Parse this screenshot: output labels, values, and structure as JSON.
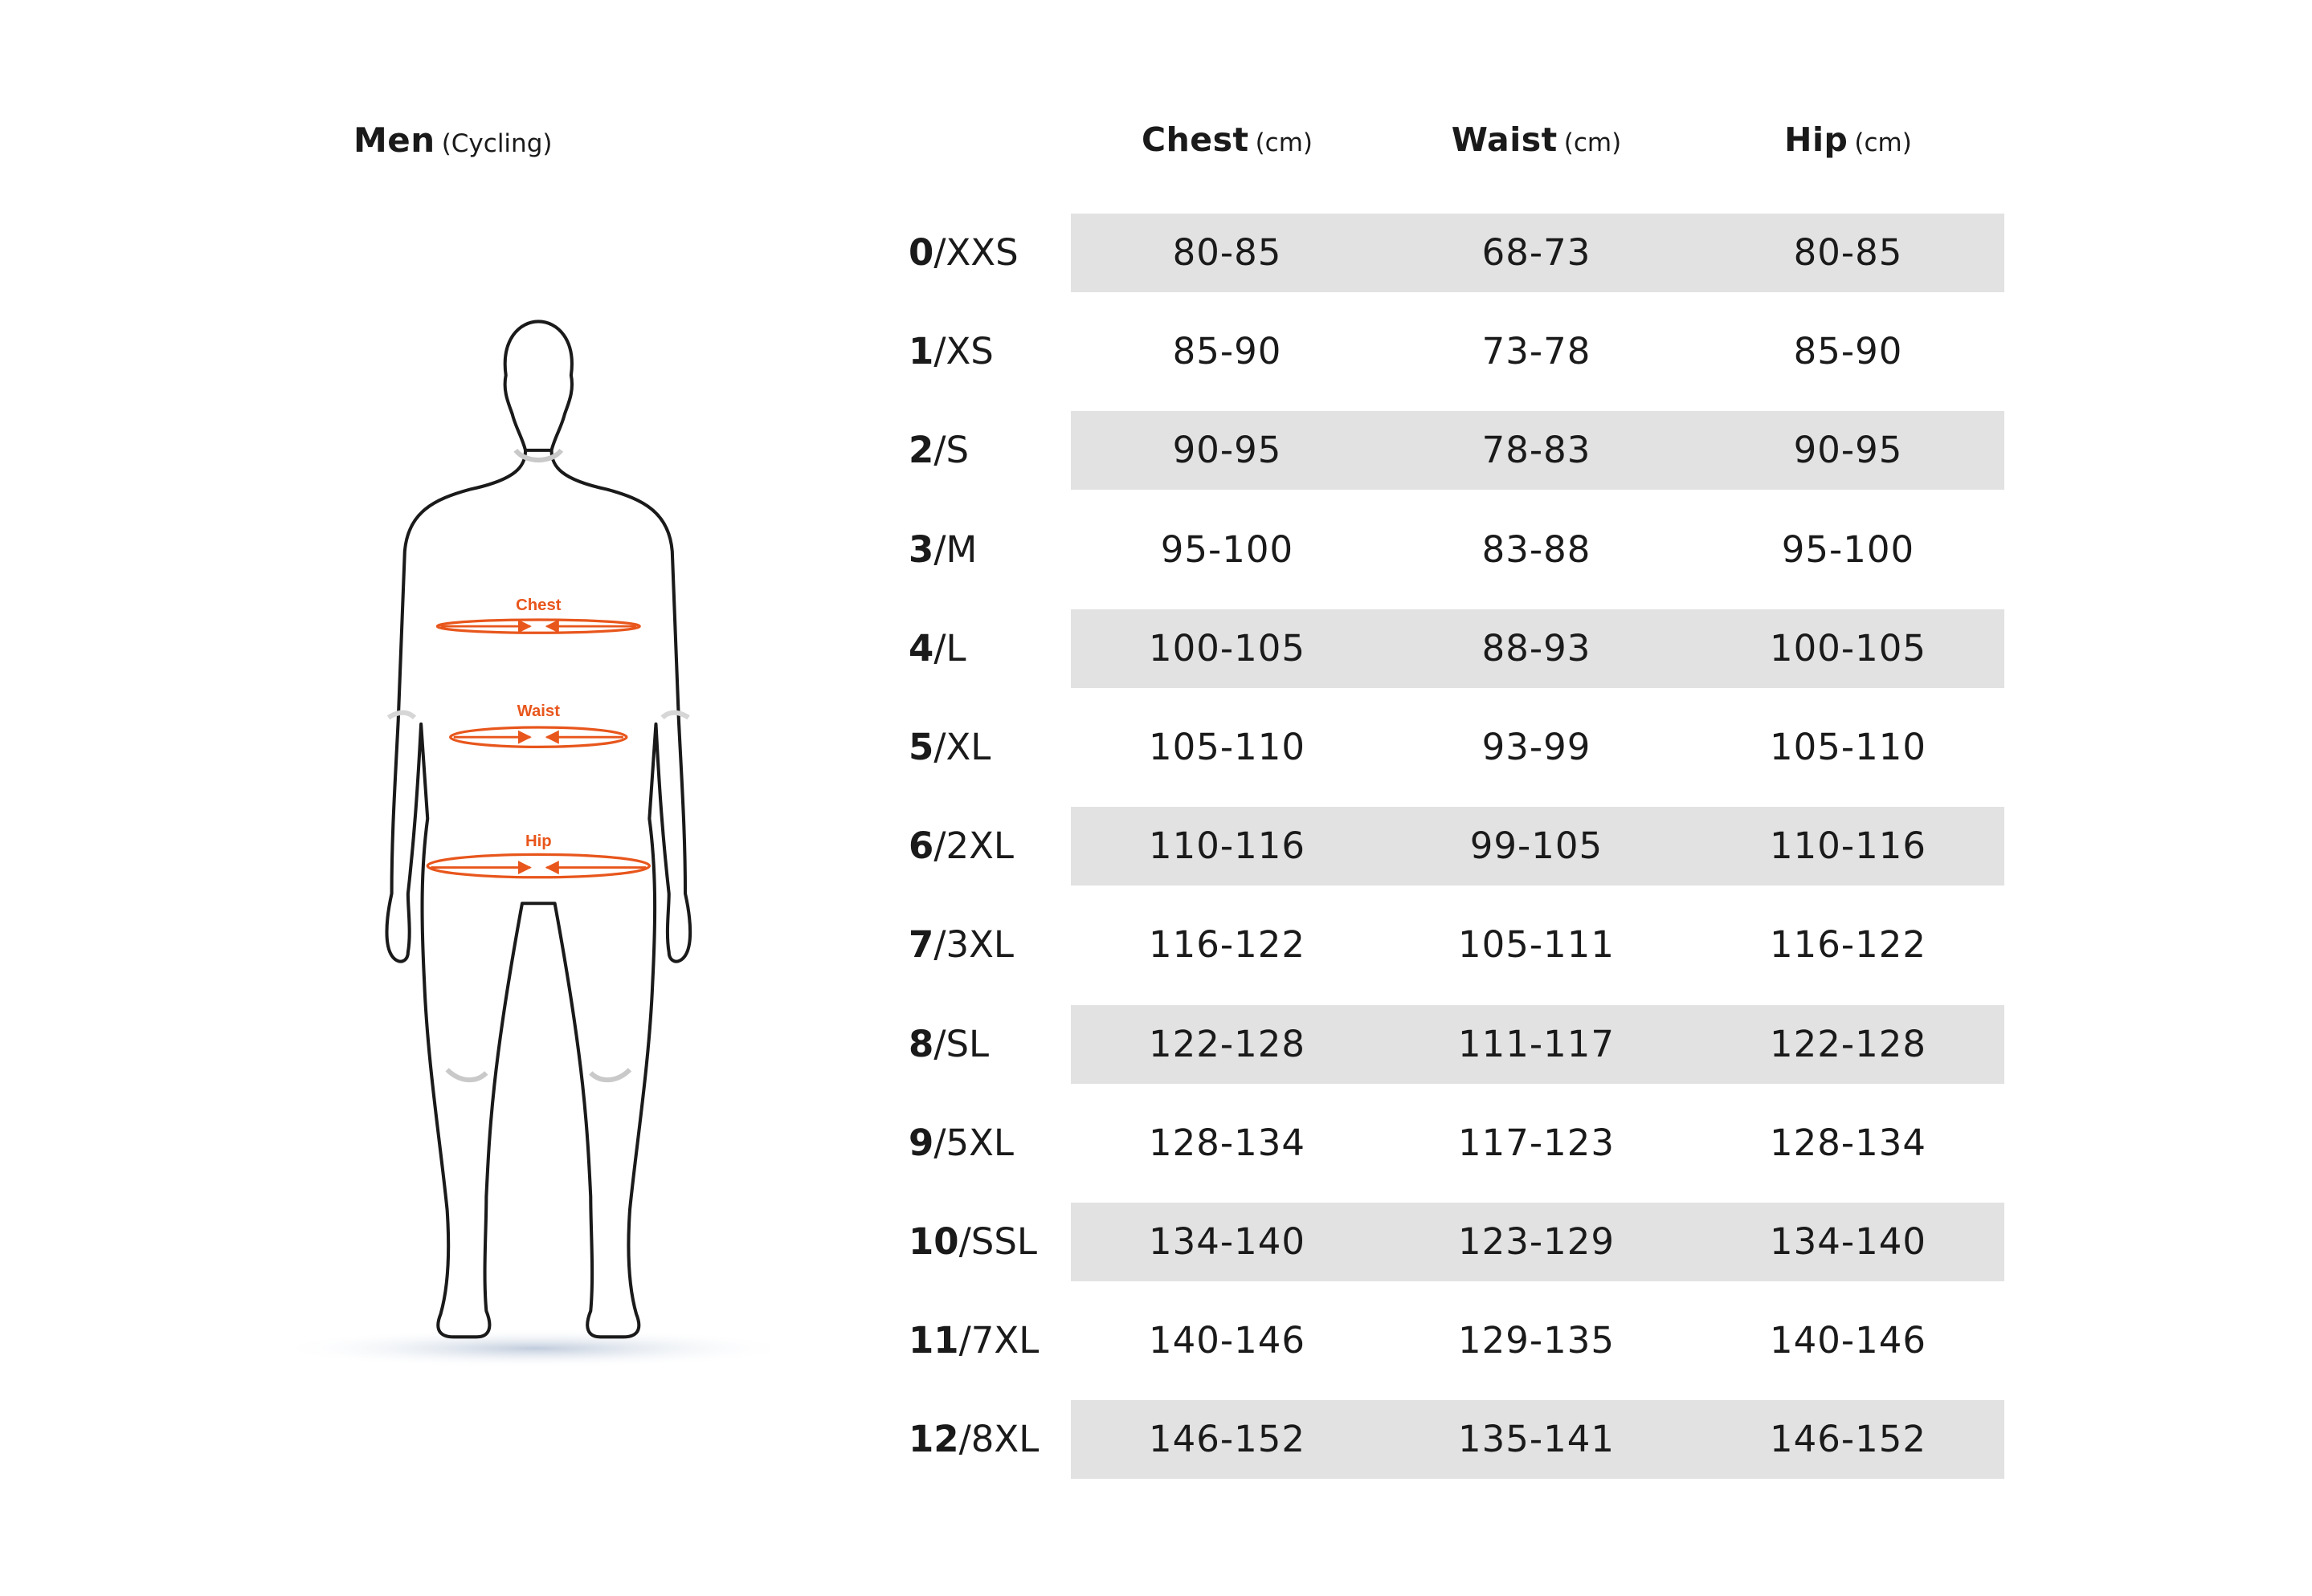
{
  "title": {
    "main": "Men",
    "sub": "(Cycling)"
  },
  "figure": {
    "chest_label": "Chest",
    "waist_label": "Waist",
    "hip_label": "Hip",
    "accent_color": "#e8561c",
    "outline_color": "#1a1a1a"
  },
  "table": {
    "headers": [
      {
        "label": "Chest",
        "unit": "(cm)"
      },
      {
        "label": "Waist",
        "unit": "(cm)"
      },
      {
        "label": "Hip",
        "unit": "(cm)"
      }
    ],
    "band_color": "#e2e2e2",
    "rows": [
      {
        "num": "0",
        "label": "/XXS",
        "chest": "80-85",
        "waist": "68-73",
        "hip": "80-85"
      },
      {
        "num": "1",
        "label": "/XS",
        "chest": "85-90",
        "waist": "73-78",
        "hip": "85-90"
      },
      {
        "num": "2",
        "label": "/S",
        "chest": "90-95",
        "waist": "78-83",
        "hip": "90-95"
      },
      {
        "num": "3",
        "label": "/M",
        "chest": "95-100",
        "waist": "83-88",
        "hip": "95-100"
      },
      {
        "num": "4",
        "label": "/L",
        "chest": "100-105",
        "waist": "88-93",
        "hip": "100-105"
      },
      {
        "num": "5",
        "label": "/XL",
        "chest": "105-110",
        "waist": "93-99",
        "hip": "105-110"
      },
      {
        "num": "6",
        "label": "/2XL",
        "chest": "110-116",
        "waist": "99-105",
        "hip": "110-116"
      },
      {
        "num": "7",
        "label": "/3XL",
        "chest": "116-122",
        "waist": "105-111",
        "hip": "116-122"
      },
      {
        "num": "8",
        "label": "/SL",
        "chest": "122-128",
        "waist": "111-117",
        "hip": "122-128"
      },
      {
        "num": "9",
        "label": "/5XL",
        "chest": "128-134",
        "waist": "117-123",
        "hip": "128-134"
      },
      {
        "num": "10",
        "label": "/SSL",
        "chest": "134-140",
        "waist": "123-129",
        "hip": "134-140"
      },
      {
        "num": "11",
        "label": "/7XL",
        "chest": "140-146",
        "waist": "129-135",
        "hip": "140-146"
      },
      {
        "num": "12",
        "label": "/8XL",
        "chest": "146-152",
        "waist": "135-141",
        "hip": "146-152"
      }
    ]
  }
}
